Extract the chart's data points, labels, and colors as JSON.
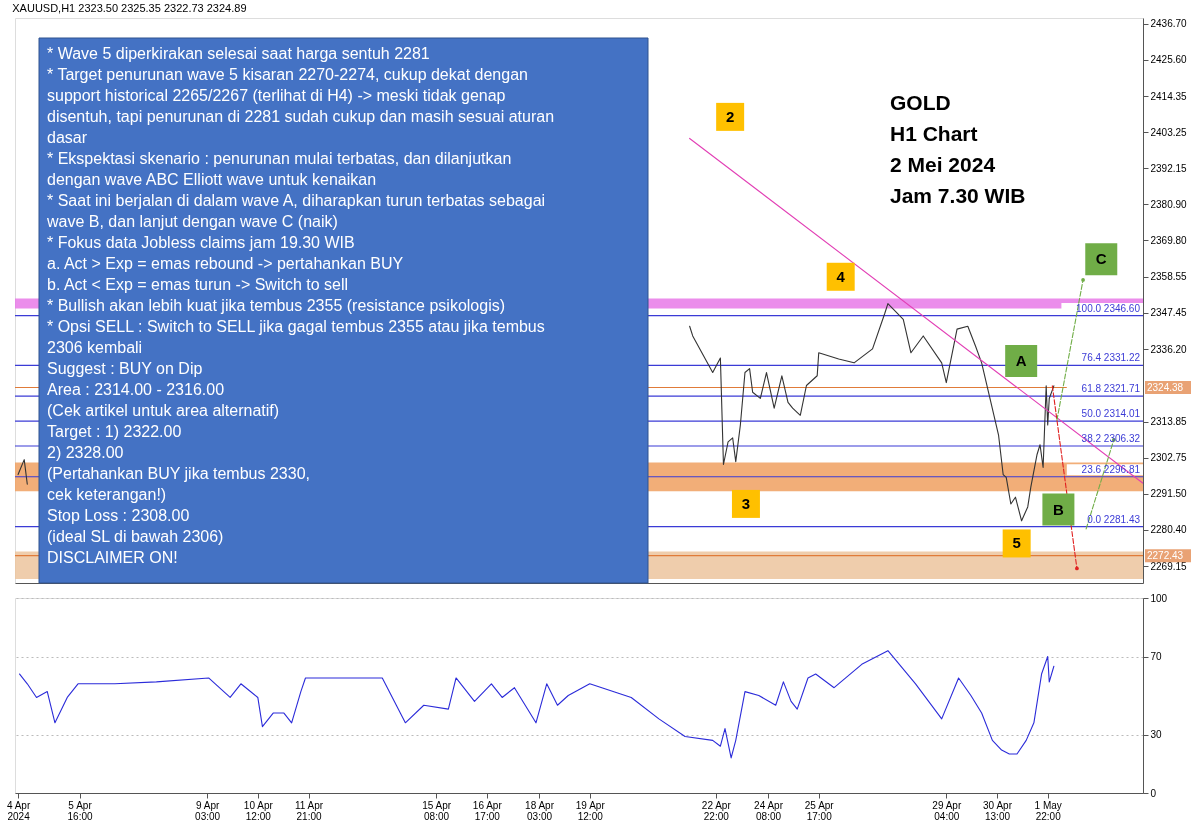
{
  "chart_data": [
    {
      "type": "line",
      "title": "XAUUSD,H1  2323.50 2325.35 2322.73 2324.89",
      "xlim": [
        "2024-04-03T22:00",
        "2024-05-04T12:00"
      ],
      "ylim": [
        2264,
        2438.5
      ],
      "tick_labels": "y",
      "yticks": [
        {
          "value": 2436.7,
          "label": "2436.70"
        },
        {
          "value": 2425.6,
          "label": "2425.60"
        },
        {
          "value": 2414.35,
          "label": "2414.35"
        },
        {
          "value": 2403.25,
          "label": "2403.25"
        },
        {
          "value": 2392.15,
          "label": "2392.15"
        },
        {
          "value": 2380.9,
          "label": "2380.90"
        },
        {
          "value": 2369.8,
          "label": "2369.80"
        },
        {
          "value": 2358.55,
          "label": "2358.55"
        },
        {
          "value": 2347.45,
          "label": "2347.45"
        },
        {
          "value": 2336.2,
          "label": "2336.20"
        },
        {
          "value": 2313.85,
          "label": "2313.85"
        },
        {
          "value": 2302.75,
          "label": "2302.75"
        },
        {
          "value": 2291.5,
          "label": "2291.50"
        },
        {
          "value": 2280.4,
          "label": "2280.40"
        },
        {
          "value": 2269.15,
          "label": "2269.15"
        }
      ],
      "series": [
        {
          "color": "#333333",
          "x": [
            "2024-04-04T00:00",
            "2024-04-04T04:00",
            "2024-04-04T06:00",
            "2024-04-10T13:00",
            "2024-04-22T05:00",
            "2024-04-22T07:00",
            "2024-04-22T20:00",
            "2024-04-23T01:00",
            "2024-04-23T03:00",
            "2024-04-23T06:00",
            "2024-04-23T09:00",
            "2024-04-23T11:00",
            "2024-04-23T14:00",
            "2024-04-23T17:00",
            "2024-04-23T20:00",
            "2024-04-23T22:00",
            "2024-04-24T03:00",
            "2024-04-24T07:00",
            "2024-04-24T12:00",
            "2024-04-24T17:00",
            "2024-04-24T21:00",
            "2024-04-25T00:00",
            "2024-04-25T05:00",
            "2024-04-25T09:00",
            "2024-04-25T16:00",
            "2024-04-25T17:00",
            "2024-04-26T06:00",
            "2024-04-26T16:00",
            "2024-04-27T04:00",
            "2024-04-27T12:00",
            "2024-04-27T14:00",
            "2024-04-28T00:00",
            "2024-04-28T05:00",
            "2024-04-28T13:00",
            "2024-04-29T01:00",
            "2024-04-29T04:00",
            "2024-04-29T11:00",
            "2024-04-29T18:00",
            "2024-04-29T23:00",
            "2024-04-30T03:00",
            "2024-04-30T08:00",
            "2024-04-30T11:00",
            "2024-04-30T14:00",
            "2024-04-30T17:00",
            "2024-04-30T19:00",
            "2024-04-30T22:00",
            "2024-05-01T01:00",
            "2024-05-01T05:00",
            "2024-05-01T09:00",
            "2024-05-01T11:00",
            "2024-05-01T15:00",
            "2024-05-01T17:00",
            "2024-05-01T19:00",
            "2024-05-01T21:00",
            "2024-05-01T22:00",
            "2024-05-01T23:00",
            "2024-05-02T02:00"
          ],
          "values": [
            2297.5,
            2302.1,
            2294.5,
            null,
            2343.3,
            2340.3,
            2329.0,
            2333.5,
            2300.6,
            2307.6,
            2308.8,
            2301.5,
            2312.8,
            2329.0,
            2330.2,
            2322.9,
            2321.0,
            2329.0,
            2318.0,
            2328.0,
            2319.8,
            2318.0,
            2315.8,
            2325.0,
            2328.0,
            2335.1,
            2333.2,
            2332.0,
            2336.3,
            2347.3,
            2350.3,
            2345.4,
            2335.1,
            2340.3,
            2332.0,
            2325.9,
            2342.4,
            2343.3,
            2337.2,
            2332.0,
            2321.9,
            2315.8,
            2309.7,
            2297.5,
            2296.6,
            2288.4,
            2290.5,
            2283.2,
            2287.5,
            2293.6,
            2303.6,
            2306.7,
            2299.7,
            2324.9,
            2312.8,
            2321.0,
            2324.9
          ]
        },
        {
          "color": "#e23fb5",
          "x": [
            "2024-04-22T05:00",
            "2024-05-04T12:00"
          ],
          "values": [
            2401.3,
            2294.8
          ]
        },
        {
          "color": "#e02020",
          "line_style": "dashed",
          "x": [
            "2024-05-02T01:00",
            "2024-05-02T17:00"
          ],
          "values": [
            2324.9,
            2268.5
          ]
        },
        {
          "color": "#70ad47",
          "line_style": "dashed",
          "x": [
            "2024-05-02T04:00",
            "2024-05-02T21:00"
          ],
          "values": [
            2314.3,
            2357.6
          ]
        },
        {
          "color": "#70ad47",
          "line_style": "dashed",
          "x": [
            "2024-05-02T23:00",
            "2024-05-03T17:00"
          ],
          "values": [
            2280.7,
            2308.2
          ]
        }
      ],
      "ref_lines": [
        {
          "axis": "y",
          "value": 2346.6,
          "label": "100.0  2346.60",
          "color": "#3b3bd6"
        },
        {
          "axis": "y",
          "value": 2331.22,
          "label": "76.4  2331.22",
          "color": "#3b3bd6"
        },
        {
          "axis": "y",
          "value": 2321.71,
          "label": "61.8  2321.71",
          "color": "#3b3bd6"
        },
        {
          "axis": "y",
          "value": 2314.01,
          "label": "50.0  2314.01",
          "color": "#3b3bd6"
        },
        {
          "axis": "y",
          "value": 2306.32,
          "label": "38.2  2306.32",
          "color": "#3b3bd6"
        },
        {
          "axis": "y",
          "value": 2296.81,
          "label": "23.6  2296.81",
          "color": "#3b3bd6"
        },
        {
          "axis": "y",
          "value": 2281.43,
          "label": "0.0  2281.43",
          "color": "#3b3bd6"
        },
        {
          "axis": "y",
          "value": 2324.38,
          "label": "2324.38",
          "color": "#e07b39"
        },
        {
          "axis": "y",
          "value": 2272.43,
          "label": "2272.43",
          "color": "#e07b39"
        }
      ],
      "bands": [
        {
          "axis": "y",
          "from": 2348.8,
          "to": 2351.9,
          "color": "#e879e8"
        },
        {
          "axis": "y",
          "from": 2292.3,
          "to": 2301.2,
          "color": "#f0a060"
        },
        {
          "axis": "y",
          "from": 2265.2,
          "to": 2273.7,
          "color": "#ecc49e"
        }
      ],
      "annotations": [
        "* Wave 5 diperkirakan selesai saat harga sentuh 2281\n* Target penurunan wave 5 kisaran 2270-2274, cukup dekat dengan\nsupport historical 2265/2267 (terlihat di H4) -> meski tidak genap\ndisentuh, tapi penurunan di 2281 sudah cukup dan masih sesuai aturan\ndasar\n* Ekspektasi skenario : penurunan mulai terbatas, dan dilanjutkan\ndengan wave ABC Elliott wave untuk kenaikan\n* Saat ini berjalan di dalam wave A, diharapkan turun terbatas sebagai\nwave B, dan lanjut dengan wave C (naik)\n* Fokus data Jobless claims jam 19.30 WIB\n  a. Act > Exp = emas rebound -> pertahankan BUY\n  b. Act < Exp = emas turun -> Switch to sell\n* Bullish akan lebih kuat jika tembus 2355 (resistance psikologis)\n* Opsi SELL : Switch to SELL jika gagal tembus 2355 atau jika tembus\n2306 kembali\n\nSuggest : BUY on Dip\nArea : 2314.00 - 2316.00\n(Cek artikel untuk area alternatif)\nTarget : 1) 2322.00\n            2) 2328.00\n(Pertahankan BUY jika tembus 2330,\ncek keterangan!)\nStop Loss : 2308.00\n(ideal SL di bawah 2306)\nDISCLAIMER ON!",
        "GOLD\nH1 Chart\n2 Mei 2024\nJam 7.30 WIB",
        "2",
        "3",
        "4",
        "5",
        "A",
        "B",
        "C"
      ]
    },
    {
      "type": "line",
      "xlim": [
        "2024-04-03T22:00",
        "2024-05-04T12:00"
      ],
      "ylim": [
        0,
        100
      ],
      "yticks": [
        0,
        30,
        70,
        100
      ],
      "grid": "y",
      "xticks": [
        {
          "value": "2024-04-04T00:00",
          "label": "4 Apr 2024"
        },
        {
          "value": "2024-04-05T16:00",
          "label": "5 Apr 16:00"
        },
        {
          "value": "2024-04-09T03:00",
          "label": "9 Apr 03:00"
        },
        {
          "value": "2024-04-10T12:00",
          "label": "10 Apr 12:00"
        },
        {
          "value": "2024-04-11T21:00",
          "label": "11 Apr 21:00"
        },
        {
          "value": "2024-04-15T08:00",
          "label": "15 Apr 08:00"
        },
        {
          "value": "2024-04-16T17:00",
          "label": "16 Apr 17:00"
        },
        {
          "value": "2024-04-18T03:00",
          "label": "18 Apr 03:00"
        },
        {
          "value": "2024-04-19T12:00",
          "label": "19 Apr 12:00"
        },
        {
          "value": "2024-04-22T22:00",
          "label": "22 Apr 22:00"
        },
        {
          "value": "2024-04-24T08:00",
          "label": "24 Apr 08:00"
        },
        {
          "value": "2024-04-25T17:00",
          "label": "25 Apr 17:00"
        },
        {
          "value": "2024-04-29T04:00",
          "label": "29 Apr 04:00"
        },
        {
          "value": "2024-04-30T13:00",
          "label": "30 Apr 13:00"
        },
        {
          "value": "2024-05-01T22:00",
          "label": "1 May 22:00"
        }
      ],
      "series": [
        {
          "color": "#2b2bd9",
          "x": [
            "2024-04-04T01:00",
            "2024-04-04T06:00",
            "2024-04-04T12:00",
            "2024-04-04T19:00",
            "2024-04-05T00:00",
            "2024-04-05T08:00",
            "2024-04-05T15:00",
            "2024-04-06T15:00",
            "2024-04-07T18:00",
            "2024-04-09T04:00",
            "2024-04-09T18:00",
            "2024-04-10T01:00",
            "2024-04-10T12:00",
            "2024-04-10T15:00",
            "2024-04-10T22:00",
            "2024-04-11T05:00",
            "2024-04-11T10:00",
            "2024-04-11T16:00",
            "2024-04-11T19:00",
            "2024-04-13T21:00",
            "2024-04-14T12:00",
            "2024-04-15T00:00",
            "2024-04-15T16:00",
            "2024-04-15T21:00",
            "2024-04-16T09:00",
            "2024-04-16T20:00",
            "2024-04-17T03:00",
            "2024-04-17T11:00",
            "2024-04-17T18:00",
            "2024-04-18T01:00",
            "2024-04-18T08:00",
            "2024-04-18T15:00",
            "2024-04-18T22:00",
            "2024-04-19T12:00",
            "2024-04-20T15:00",
            "2024-04-21T09:00",
            "2024-04-22T02:00",
            "2024-04-22T20:00",
            "2024-04-23T01:00",
            "2024-04-23T04:00",
            "2024-04-23T08:00",
            "2024-04-23T11:00",
            "2024-04-23T17:00",
            "2024-04-24T02:00",
            "2024-04-24T13:00",
            "2024-04-24T18:00",
            "2024-04-24T23:00",
            "2024-04-25T03:00",
            "2024-04-25T10:00",
            "2024-04-25T15:00",
            "2024-04-26T03:00",
            "2024-04-26T21:00",
            "2024-04-27T14:00",
            "2024-04-28T08:00",
            "2024-04-29T01:00",
            "2024-04-29T12:00",
            "2024-04-29T20:00",
            "2024-04-30T03:00",
            "2024-04-30T10:00",
            "2024-04-30T16:00",
            "2024-04-30T21:00",
            "2024-05-01T02:00",
            "2024-05-01T08:00",
            "2024-05-01T13:00",
            "2024-05-01T18:00",
            "2024-05-01T22:00",
            "2024-05-01T23:00",
            "2024-05-02T02:00"
          ],
          "values": [
            61,
            56,
            49,
            52,
            36,
            49,
            56,
            56,
            57,
            59,
            49,
            56,
            49,
            34,
            41,
            41,
            36,
            52,
            59,
            59,
            36,
            45,
            43,
            59,
            47,
            56,
            49,
            54,
            45,
            36,
            56,
            45,
            50,
            56,
            49,
            38,
            29,
            27,
            24,
            33,
            18,
            27,
            52,
            50,
            45,
            57,
            47,
            43,
            59,
            61,
            54,
            66,
            73,
            56,
            38,
            59,
            50,
            41,
            27,
            22,
            20,
            20,
            27,
            36,
            61,
            70,
            57,
            65
          ]
        }
      ]
    }
  ]
}
